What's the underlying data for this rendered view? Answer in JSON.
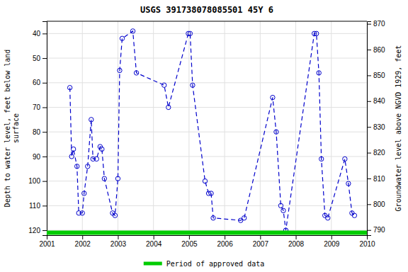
{
  "chart_data": {
    "type": "line",
    "title": "USGS 391738078085501 45Y  6",
    "ylabel": "Depth to water level, feet below land\nsurface",
    "y2label": "Groundwater level above NGVD 1929, feet",
    "xlim": [
      2001,
      2010
    ],
    "xticks": [
      2001,
      2002,
      2003,
      2004,
      2005,
      2006,
      2007,
      2008,
      2009,
      2010
    ],
    "ylim": [
      122,
      35
    ],
    "yticks": [
      40,
      50,
      60,
      70,
      80,
      90,
      100,
      110,
      120
    ],
    "y2lim": [
      788,
      871
    ],
    "y2ticks": [
      790,
      800,
      810,
      820,
      830,
      840,
      850,
      860,
      870
    ],
    "grid": true,
    "legend": "bottom",
    "series": [
      {
        "color": "#0000cc",
        "marker": "circle",
        "line_style": "dashed",
        "x": [
          2001.65,
          2001.7,
          2001.75,
          2001.85,
          2001.9,
          2002.0,
          2002.05,
          2002.15,
          2002.25,
          2002.3,
          2002.4,
          2002.5,
          2002.55,
          2002.62,
          2002.85,
          2002.92,
          2003.0,
          2003.05,
          2003.12,
          2003.42,
          2003.52,
          2004.3,
          2004.42,
          2004.98,
          2005.03,
          2005.1,
          2005.45,
          2005.55,
          2005.62,
          2005.68,
          2006.45,
          2006.55,
          2007.35,
          2007.45,
          2007.58,
          2007.65,
          2007.72,
          2008.52,
          2008.58,
          2008.65,
          2008.72,
          2008.82,
          2008.9,
          2009.38,
          2009.48,
          2009.58,
          2009.65
        ],
        "values": [
          62,
          90,
          87,
          94,
          113,
          113,
          105,
          94,
          75,
          91,
          91,
          86,
          87,
          99,
          113,
          114,
          99,
          55,
          42,
          39,
          56,
          61,
          70,
          40,
          40,
          61,
          100,
          105,
          105,
          115,
          116,
          115,
          66,
          80,
          110,
          112,
          120,
          40,
          40,
          56,
          91,
          114,
          115,
          91,
          101,
          113,
          114
        ]
      },
      {
        "name": "Period of approved data",
        "color": "#00cc00",
        "line_style": "solid",
        "x": [
          2001,
          2010
        ],
        "values": [
          121,
          121
        ]
      }
    ]
  }
}
